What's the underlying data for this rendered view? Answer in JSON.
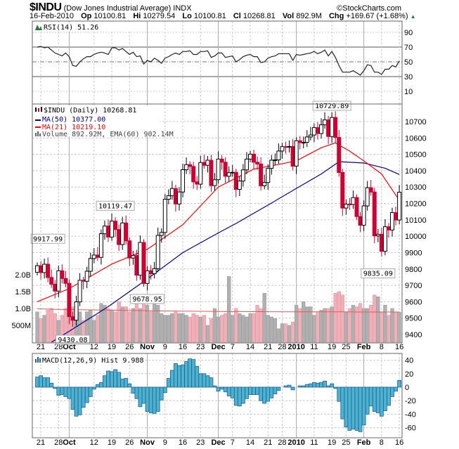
{
  "header": {
    "symbol": "$INDU",
    "name": "(Dow Jones Industrial Average)",
    "exchange": "INDX",
    "brand": "©StockCharts.com",
    "date": "16-Feb-2010",
    "op_label": "Op",
    "op": "10100.81",
    "hi_label": "Hi",
    "hi": "10279.54",
    "lo_label": "Lo",
    "lo": "10100.81",
    "cl_label": "Cl",
    "cl": "10268.81",
    "vol_label": "Vol",
    "vol": "892.9M",
    "chg_label": "Chg",
    "chg": "+169.67 (+1.68%)"
  },
  "colors": {
    "up": "#000000",
    "down": "#cc0033",
    "ma50": "#000099",
    "ma21": "#ff0000",
    "vol_up": "#b0b0b0",
    "vol_down": "#f0b0b8",
    "macd_fill": "#4db3cc",
    "macd_edge": "#1f5fa0"
  },
  "legend": {
    "rsi": "RSI(14) 51.26",
    "price": "$INDU (Daily) 10268.81",
    "ma50": "MA(50) 10377.00",
    "ma21": "MA(21) 10219.10",
    "volume": "Volume 892.92M, EMA(60) 902.14M",
    "macd": "MACD(12,26,9) Hist 9.988"
  },
  "chart_data": {
    "type": "candlestick",
    "title": "$INDU (Daily)",
    "price_ticks": [
      9400,
      9500,
      9600,
      9700,
      9800,
      9900,
      10000,
      10100,
      10200,
      10300,
      10400,
      10500,
      10600,
      10700
    ],
    "price_range": [
      9350,
      10810
    ],
    "volume_ticks": [
      {
        "v": 2000,
        "label": "2.0B"
      },
      {
        "v": 1500,
        "label": "1.5B"
      },
      {
        "v": 1000,
        "label": "1.0B"
      },
      {
        "v": 500,
        "label": "500M"
      }
    ],
    "rsi_ticks": [
      90,
      70,
      50,
      30,
      10
    ],
    "macd_ticks": [
      40,
      20,
      0,
      -20,
      -40,
      -60
    ],
    "date_labels": [
      {
        "i": 1,
        "t": "21"
      },
      {
        "i": 6,
        "t": "28"
      },
      {
        "i": 9,
        "t": "Oct",
        "b": true
      },
      {
        "i": 16,
        "t": "12"
      },
      {
        "i": 21,
        "t": "19"
      },
      {
        "i": 26,
        "t": "26"
      },
      {
        "i": 31,
        "t": "Nov",
        "b": true
      },
      {
        "i": 36,
        "t": "9"
      },
      {
        "i": 41,
        "t": "16"
      },
      {
        "i": 46,
        "t": "23"
      },
      {
        "i": 51,
        "t": "Dec",
        "b": true
      },
      {
        "i": 55,
        "t": "7"
      },
      {
        "i": 60,
        "t": "14"
      },
      {
        "i": 65,
        "t": "21"
      },
      {
        "i": 69,
        "t": "28"
      },
      {
        "i": 73,
        "t": "2010",
        "b": true
      },
      {
        "i": 78,
        "t": "11"
      },
      {
        "i": 83,
        "t": "19"
      },
      {
        "i": 87,
        "t": "25"
      },
      {
        "i": 92,
        "t": "Feb",
        "b": true
      },
      {
        "i": 97,
        "t": "8"
      },
      {
        "i": 102,
        "t": "16"
      }
    ],
    "close": [
      9820,
      9778,
      9829,
      9748,
      9707,
      9665,
      9789,
      9742,
      9712,
      9509,
      9487,
      9599,
      9731,
      9725,
      9786,
      9864,
      9885,
      9871,
      10015,
      10062,
      9995,
      10092,
      10041,
      9949,
      10081,
      9972,
      9867,
      9882,
      9762,
      9962,
      9712,
      9789,
      9771,
      9802,
      10005,
      10023,
      10226,
      10247,
      10291,
      10197,
      10270,
      10406,
      10437,
      10426,
      10332,
      10318,
      10450,
      10433,
      10464,
      10309,
      10345,
      10471,
      10452,
      10366,
      10388,
      10390,
      10286,
      10337,
      10405,
      10471,
      10501,
      10452,
      10441,
      10308,
      10328,
      10414,
      10464,
      10466,
      10520,
      10547,
      10545,
      10548,
      10428,
      10583,
      10572,
      10573,
      10606,
      10618,
      10663,
      10627,
      10680,
      10710,
      10609,
      10725,
      10603,
      10389,
      10172,
      10196,
      10194,
      10236,
      10120,
      10067,
      10185,
      10296,
      10270,
      10002,
      10012,
      9908,
      10058,
      10038,
      10144,
      10099,
      10268.81
    ],
    "first_open": 9780,
    "volume_m": [
      900,
      700,
      800,
      950,
      1000,
      850,
      650,
      800,
      1000,
      1250,
      1050,
      800,
      900,
      650,
      900,
      950,
      650,
      800,
      1150,
      1100,
      1000,
      950,
      900,
      1200,
      1050,
      1050,
      900,
      1000,
      1200,
      1000,
      1300,
      1100,
      900,
      1200,
      1100,
      850,
      800,
      800,
      850,
      900,
      850,
      850,
      800,
      750,
      850,
      800,
      750,
      800,
      500,
      700,
      1000,
      750,
      800,
      850,
      1950,
      800,
      1000,
      850,
      800,
      750,
      850,
      850,
      1100,
      1000,
      1450,
      800,
      750,
      700,
      400,
      550,
      550,
      500,
      600,
      1100,
      1000,
      1200,
      1050,
      1050,
      800,
      900,
      950,
      1000,
      1000,
      1050,
      1450,
      1500,
      1400,
      900,
      1000,
      1100,
      1050,
      1150,
      1000,
      1000,
      1100,
      1400,
      1350,
      900,
      1100,
      800,
      1000,
      900,
      893
    ],
    "volume_ema60": [
      990,
      975,
      965,
      955,
      950,
      940,
      930,
      925,
      920,
      915,
      910,
      905,
      905,
      900,
      900,
      900,
      900,
      895,
      895,
      895
    ],
    "ma50": [
      [
        4,
        9353
      ],
      [
        9,
        9420
      ],
      [
        20,
        9570
      ],
      [
        31,
        9739
      ],
      [
        41,
        9900
      ],
      [
        51,
        10020
      ],
      [
        56,
        10078
      ],
      [
        65,
        10190
      ],
      [
        73,
        10292
      ],
      [
        80,
        10380
      ],
      [
        85,
        10455
      ],
      [
        92,
        10447
      ],
      [
        98,
        10415
      ],
      [
        102,
        10377
      ]
    ],
    "ma21": [
      [
        0,
        9600
      ],
      [
        9,
        9680
      ],
      [
        21,
        9830
      ],
      [
        31,
        9920
      ],
      [
        41,
        10070
      ],
      [
        51,
        10300
      ],
      [
        61,
        10410
      ],
      [
        66,
        10430
      ],
      [
        73,
        10460
      ],
      [
        80,
        10540
      ],
      [
        84,
        10570
      ],
      [
        88,
        10520
      ],
      [
        92,
        10460
      ],
      [
        97,
        10380
      ],
      [
        102,
        10219.1
      ]
    ],
    "rsi": [
      70,
      71,
      69,
      70,
      66,
      62,
      60,
      58,
      62,
      57,
      45,
      44,
      50,
      54,
      57,
      57,
      60,
      62,
      63,
      62,
      60,
      69,
      69,
      66,
      68,
      64,
      60,
      63,
      57,
      58,
      47,
      52,
      50,
      55,
      52,
      48,
      55,
      57,
      60,
      62,
      60,
      64,
      64,
      65,
      60,
      60,
      64,
      64,
      65,
      56,
      58,
      62,
      62,
      56,
      57,
      58,
      50,
      53,
      57,
      59,
      60,
      57,
      57,
      49,
      50,
      55,
      57,
      58,
      61,
      61,
      61,
      61,
      52,
      60,
      59,
      60,
      61,
      62,
      64,
      61,
      63,
      66,
      58,
      64,
      56,
      45,
      36,
      36,
      36,
      38,
      35,
      32,
      38,
      46,
      45,
      36,
      36,
      33,
      40,
      40,
      45,
      43,
      51.26
    ],
    "macd_hist": [
      15,
      17,
      14,
      14,
      6,
      -2,
      -12,
      -11,
      -14,
      -17,
      -33,
      -43,
      -41,
      -30,
      -23,
      -14,
      -3,
      4,
      7,
      17,
      24,
      23,
      26,
      22,
      12,
      13,
      5,
      -9,
      -17,
      -29,
      -24,
      -36,
      -38,
      -39,
      -36,
      -19,
      -8,
      13,
      25,
      35,
      32,
      33,
      38,
      42,
      41,
      31,
      20,
      20,
      17,
      14,
      2,
      -6,
      -3,
      -7,
      -13,
      -16,
      -27,
      -28,
      -24,
      -17,
      -11,
      -11,
      -11,
      -20,
      -24,
      -21,
      -16,
      -10,
      -5,
      0,
      2,
      3,
      -4,
      0,
      2,
      2,
      4,
      5,
      7,
      6,
      7,
      9,
      2,
      5,
      -2,
      -21,
      -47,
      -59,
      -64,
      -62,
      -64,
      -66,
      -56,
      -40,
      -28,
      -36,
      -38,
      -43,
      -35,
      -27,
      -14,
      -6,
      9.988
    ],
    "annotations": [
      {
        "i": 3,
        "p": 9917.99,
        "t": "9917.99",
        "pos": "above"
      },
      {
        "i": 10,
        "p": 9430.08,
        "t": "9430.08",
        "pos": "below"
      },
      {
        "i": 22,
        "p": 10119.47,
        "t": "10119.47",
        "pos": "above"
      },
      {
        "i": 31,
        "p": 9678.95,
        "t": "9678.95",
        "pos": "below"
      },
      {
        "i": 83,
        "p": 10729.89,
        "t": "10729.89",
        "pos": "above"
      },
      {
        "i": 96,
        "p": 9835.09,
        "t": "9835.09",
        "pos": "below"
      }
    ]
  }
}
